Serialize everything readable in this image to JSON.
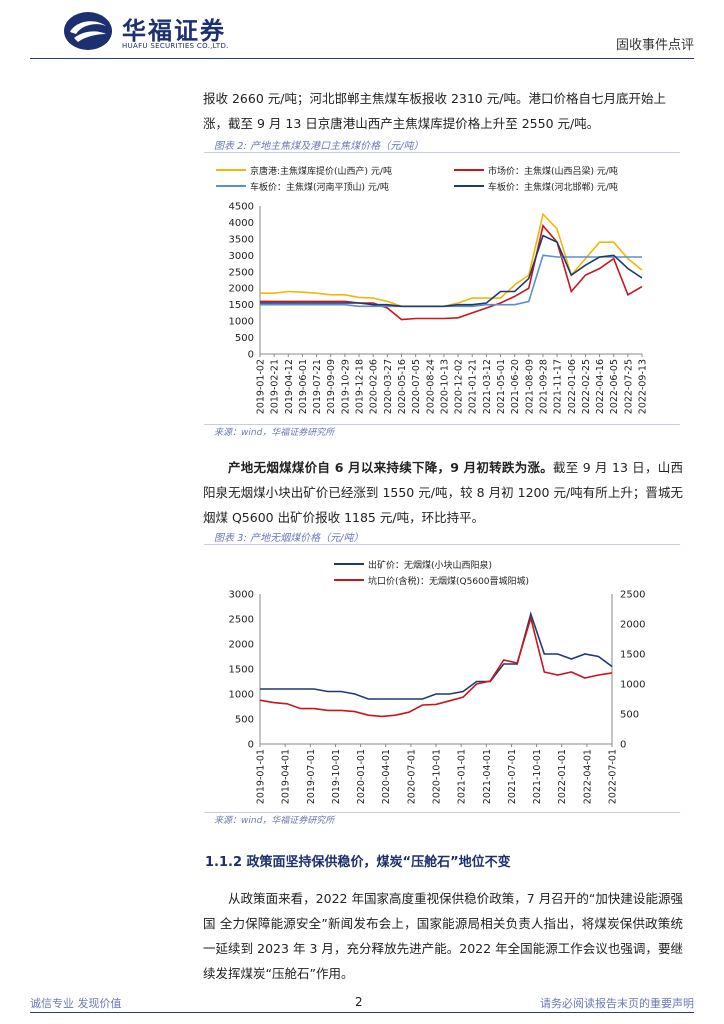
{
  "header": {
    "brand_cn": "华福证券",
    "brand_en": "HUAFU SECURITIES CO.,LTD.",
    "doc_type": "固收事件点评"
  },
  "paragraphs": {
    "p1_line1": "报收 2660 元/吨；河北邯郸主焦煤车板报收 2310 元/吨。港口价格自七月底开始上",
    "p1_line2": "涨，截至 9 月 13 日京唐港山西产主焦煤库提价格上升至 2550 元/吨。",
    "p2_bold": "产地无烟煤煤价自 6 月以来持续下降，9 月初转跌为涨。",
    "p2_rest": "截至 9 月 13 日，山西阳泉无烟煤小块出矿价已经涨到 1550 元/吨，较 8 月初 1200 元/吨有所上升；晋城无烟煤 Q5600 出矿价报收 1185 元/吨，环比持平。",
    "p3": "从政策面来看，2022 年国家高度重视保供稳价政策，7 月召开的“加快建设能源强国  全力保障能源安全”新闻发布会上，国家能源局相关负责人指出，将煤炭保供政策统一延续到 2023 年 3 月，充分释放先进产能。2022 年全国能源工作会议也强调，要继续发挥煤炭“压舱石”作用。"
  },
  "figure2": {
    "title": "图表 2:  产地主焦煤及港口主焦煤价格（元/吨）",
    "source": "来源：wind，华福证券研究所"
  },
  "figure3": {
    "title": "图表 3:  产地无烟煤价格（元/吨）",
    "source": "来源：wind，华福证券研究所"
  },
  "section": {
    "heading": "1.1.2 政策面坚持保供稳价，煤炭“压舱石”地位不变"
  },
  "footer": {
    "left": "诚信专业  发现价值",
    "page": "2",
    "right": "请务必阅读报告末页的重要声明"
  },
  "chart_data": [
    {
      "type": "line",
      "x_ticks": [
        "2019-01-02",
        "2019-02-21",
        "2019-04-12",
        "2019-06-01",
        "2019-07-21",
        "2019-09-09",
        "2019-10-29",
        "2019-12-18",
        "2020-02-06",
        "2020-03-27",
        "2020-05-16",
        "2020-07-05",
        "2020-08-24",
        "2020-10-13",
        "2020-12-02",
        "2021-01-21",
        "2021-03-12",
        "2021-05-01",
        "2021-06-20",
        "2021-08-09",
        "2021-09-28",
        "2021-11-17",
        "2022-01-06",
        "2022-02-25",
        "2022-04-16",
        "2022-06-05",
        "2022-07-25",
        "2022-09-13"
      ],
      "ylim": [
        0,
        4500
      ],
      "y_ticks": [
        0,
        500,
        1000,
        1500,
        2000,
        2500,
        3000,
        3500,
        4000,
        4500
      ],
      "legend_position": "top",
      "series": [
        {
          "name": "京唐港:主焦煤库提价(山西产) 元/吨",
          "color": "#f2b705",
          "values": [
            1850,
            1850,
            1900,
            1880,
            1850,
            1800,
            1800,
            1720,
            1700,
            1600,
            1450,
            1450,
            1450,
            1450,
            1550,
            1700,
            1700,
            1700,
            2100,
            2400,
            4250,
            3800,
            2400,
            2900,
            3400,
            3400,
            2900,
            2550
          ]
        },
        {
          "name": "市场价：主焦煤(山西吕梁) 元/吨",
          "color": "#c8161d",
          "values": [
            1600,
            1600,
            1600,
            1600,
            1600,
            1600,
            1600,
            1550,
            1550,
            1400,
            1050,
            1080,
            1080,
            1080,
            1100,
            1250,
            1400,
            1550,
            1750,
            2000,
            3900,
            3400,
            1900,
            2400,
            2600,
            2900,
            1800,
            2050
          ]
        },
        {
          "name": "车板价：主焦煤(河南平顶山) 元/吨",
          "color": "#5b8fd1",
          "values": [
            1500,
            1500,
            1500,
            1500,
            1500,
            1500,
            1500,
            1450,
            1450,
            1450,
            1450,
            1450,
            1450,
            1450,
            1450,
            1450,
            1500,
            1500,
            1500,
            1600,
            3000,
            2950,
            2950,
            2950,
            2950,
            2950,
            2950,
            2950
          ]
        },
        {
          "name": "车板价：主焦煤(河北邯郸) 元/吨",
          "color": "#1f3a6e",
          "values": [
            1550,
            1550,
            1550,
            1550,
            1550,
            1550,
            1550,
            1550,
            1500,
            1500,
            1450,
            1450,
            1450,
            1450,
            1500,
            1500,
            1550,
            1900,
            1900,
            2300,
            3600,
            3400,
            2400,
            2700,
            2950,
            3000,
            2600,
            2310
          ]
        }
      ]
    },
    {
      "type": "line",
      "x_ticks": [
        "2019-01-01",
        "2019-04-01",
        "2019-07-01",
        "2019-10-01",
        "2020-01-01",
        "2020-04-01",
        "2020-07-01",
        "2020-10-01",
        "2021-01-01",
        "2021-04-01",
        "2021-07-01",
        "2021-10-01",
        "2022-01-01",
        "2022-04-01",
        "2022-07-01"
      ],
      "ylim_left": [
        0,
        3000
      ],
      "y_ticks_left": [
        0,
        500,
        1000,
        1500,
        2000,
        2500,
        3000
      ],
      "ylim_right": [
        0,
        2500
      ],
      "y_ticks_right": [
        0,
        500,
        1000,
        1500,
        2000,
        2500
      ],
      "legend_position": "top",
      "series": [
        {
          "name": "出矿价：无烟煤(小块山西阳泉)",
          "color": "#1f3a6e",
          "axis": "left",
          "values": [
            1100,
            1100,
            1100,
            1100,
            1100,
            1050,
            1050,
            1000,
            900,
            900,
            900,
            900,
            900,
            1000,
            1000,
            1050,
            1250,
            1250,
            1600,
            1600,
            2600,
            1800,
            1800,
            1700,
            1800,
            1750,
            1550
          ]
        },
        {
          "name": "坑口价(含税)：无烟煤(Q5600晋城阳城)",
          "color": "#c8161d",
          "axis": "right",
          "values": [
            730,
            690,
            670,
            590,
            590,
            560,
            560,
            540,
            480,
            460,
            480,
            530,
            650,
            660,
            720,
            780,
            1000,
            1050,
            1400,
            1350,
            2100,
            1200,
            1150,
            1200,
            1100,
            1150,
            1185
          ]
        }
      ]
    }
  ]
}
